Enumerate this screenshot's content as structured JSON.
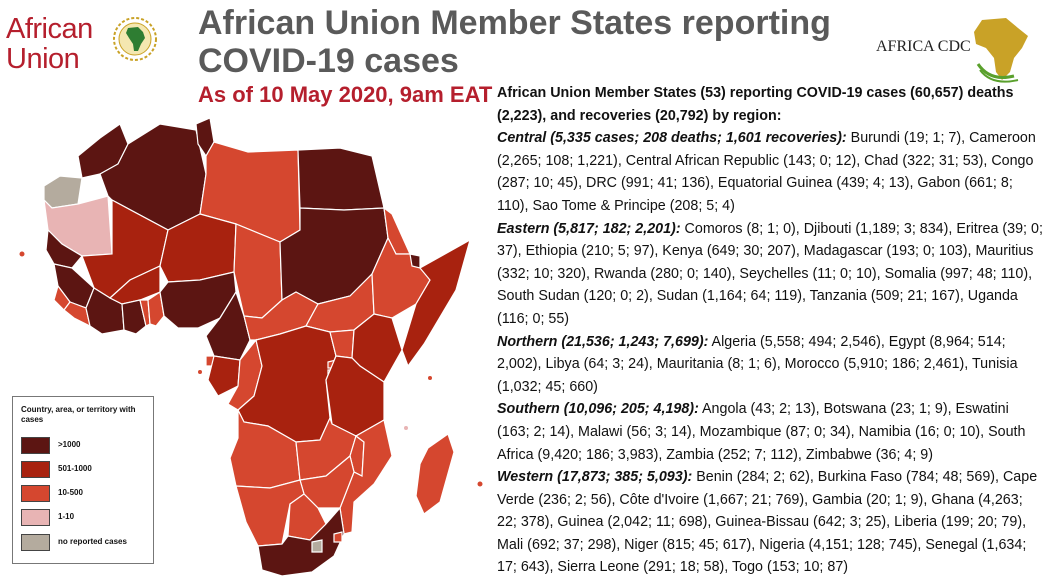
{
  "header": {
    "org_name_line1": "African",
    "org_name_line2": "Union",
    "title_line1": "African Union Member States reporting",
    "title_line2": "COVID-19 cases",
    "as_of": "As of 10 May 2020, 9am EAT",
    "cdc_label": "AFRICA CDC",
    "brand_red": "#b51f2d",
    "title_gray": "#5a5a5a"
  },
  "summary": {
    "headline": "African Union Member States (53) reporting COVID-19 cases (60,657) deaths (2,223), and recoveries (20,792) by region:",
    "regions": [
      {
        "label": "Central (5,335 cases; 208 deaths; 1,601 recoveries):",
        "text": " Burundi (19; 1; 7), Cameroon (2,265; 108; 1,221), Central African Republic (143; 0; 12), Chad (322; 31; 53), Congo (287; 10; 45), DRC (991; 41; 136), Equatorial Guinea (439; 4; 13), Gabon (661; 8; 110), Sao Tome & Principe (208; 5; 4)"
      },
      {
        "label": "Eastern (5,817; 182; 2,201):",
        "text": " Comoros (8; 1; 0), Djibouti (1,189; 3; 834), Eritrea (39; 0; 37), Ethiopia (210; 5; 97), Kenya (649; 30; 207), Madagascar (193; 0; 103), Mauritius (332; 10; 320), Rwanda (280; 0; 140), Seychelles (11; 0; 10), Somalia (997; 48; 110), South Sudan (120; 0; 2), Sudan (1,164; 64; 119), Tanzania (509; 21; 167), Uganda (116; 0; 55)"
      },
      {
        "label": "Northern (21,536; 1,243; 7,699):",
        "text": " Algeria (5,558; 494; 2,546), Egypt (8,964; 514; 2,002), Libya (64; 3; 24), Mauritania (8; 1; 6), Morocco (5,910; 186; 2,461), Tunisia (1,032; 45; 660)"
      },
      {
        "label": "Southern (10,096; 205; 4,198):",
        "text": " Angola (43; 2; 13), Botswana (23; 1; 9), Eswatini (163; 2; 14), Malawi (56; 3; 14), Mozambique (87; 0; 34),  Namibia (16; 0; 10), South Africa (9,420; 186; 3,983), Zambia (252; 7; 112), Zimbabwe (36; 4; 9)"
      },
      {
        "label": "Western (17,873; 385; 5,093):",
        "text": " Benin (284; 2; 62), Burkina Faso (784; 48; 569), Cape Verde (236; 2; 56), Côte d'Ivoire (1,667; 21; 769), Gambia (20; 1; 9), Ghana (4,263; 22; 378), Guinea (2,042; 11; 698), Guinea-Bissau (642; 3; 25), Liberia (199; 20; 79), Mali (692; 37; 298), Niger (815; 45; 617), Nigeria (4,151; 128; 745), Senegal (1,634; 17; 643), Sierra Leone (291; 18; 58), Togo (153; 10; 87)"
      }
    ]
  },
  "legend": {
    "title": "Country, area, or territory with cases",
    "items": [
      {
        "label": ">1000",
        "color": "#5c1512"
      },
      {
        "label": "501-1000",
        "color": "#a8220f"
      },
      {
        "label": "10-500",
        "color": "#d5472f"
      },
      {
        "label": "1-10",
        "color": "#e8b4b4"
      },
      {
        "label": "no reported cases",
        "color": "#b4ab9e"
      }
    ]
  }
}
